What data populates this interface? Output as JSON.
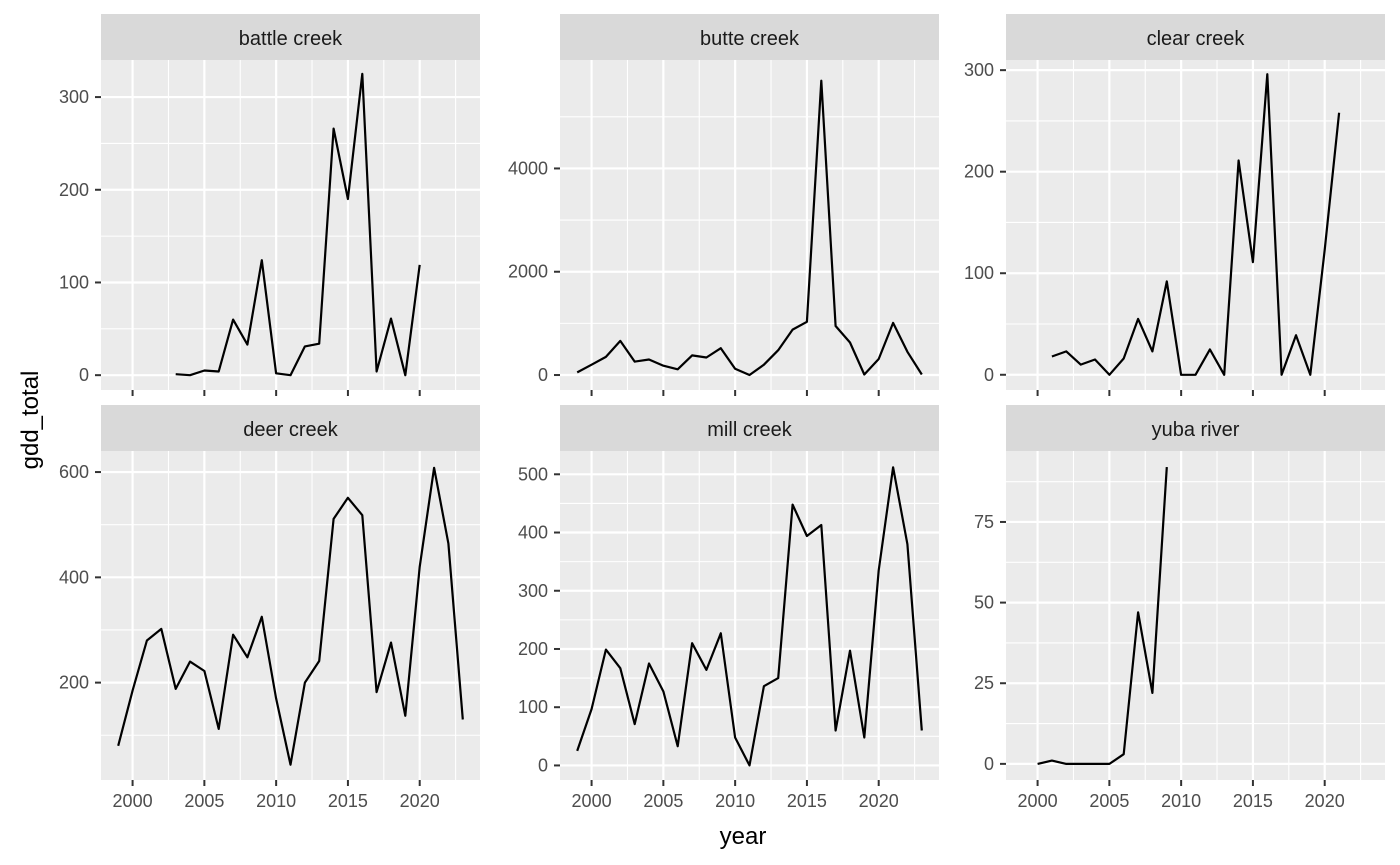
{
  "chart_data": {
    "type": "line",
    "layout": "facet-wrap",
    "xlabel": "year",
    "ylabel": "gdd_total",
    "x_ticks": [
      2000,
      2005,
      2010,
      2015,
      2020
    ],
    "grid": true,
    "panels": [
      {
        "title": "battle creek",
        "xlim": [
          1997.8,
          2024.2
        ],
        "ylim": [
          -16,
          340
        ],
        "yticks": [
          0,
          100,
          200,
          300
        ],
        "x": [
          2003,
          2004,
          2005,
          2006,
          2007,
          2008,
          2009,
          2010,
          2011,
          2012,
          2013,
          2014,
          2015,
          2016,
          2017,
          2018,
          2019,
          2020
        ],
        "y": [
          1,
          0,
          5,
          4,
          60,
          33,
          124,
          2,
          0,
          31,
          34,
          266,
          190,
          325,
          4,
          61,
          0,
          119
        ]
      },
      {
        "title": "butte creek",
        "xlim": [
          1997.8,
          2024.2
        ],
        "ylim": [
          -290,
          6100
        ],
        "yticks": [
          0,
          2000,
          4000
        ],
        "x": [
          1999,
          2000,
          2001,
          2002,
          2003,
          2004,
          2005,
          2006,
          2007,
          2008,
          2009,
          2010,
          2011,
          2012,
          2013,
          2014,
          2015,
          2016,
          2017,
          2018,
          2019,
          2020,
          2021,
          2022,
          2023
        ],
        "y": [
          50,
          200,
          350,
          660,
          260,
          300,
          180,
          110,
          380,
          340,
          520,
          120,
          0,
          200,
          480,
          880,
          1030,
          5700,
          950,
          630,
          10,
          310,
          1010,
          450,
          10
        ]
      },
      {
        "title": "clear creek",
        "xlim": [
          1997.8,
          2024.2
        ],
        "ylim": [
          -15,
          310
        ],
        "yticks": [
          0,
          100,
          200,
          300
        ],
        "x": [
          2001,
          2002,
          2003,
          2004,
          2005,
          2006,
          2007,
          2008,
          2009,
          2010,
          2011,
          2012,
          2013,
          2014,
          2015,
          2016,
          2017,
          2018,
          2019,
          2020,
          2021
        ],
        "y": [
          18,
          23,
          10,
          15,
          0,
          16,
          55,
          23,
          92,
          0,
          0,
          25,
          0,
          211,
          111,
          296,
          0,
          39,
          0,
          123,
          258
        ]
      },
      {
        "title": "deer creek",
        "xlim": [
          1997.8,
          2024.2
        ],
        "ylim": [
          15,
          640
        ],
        "yticks": [
          200,
          400,
          600
        ],
        "x": [
          1999,
          2000,
          2001,
          2002,
          2003,
          2004,
          2005,
          2006,
          2007,
          2008,
          2009,
          2010,
          2011,
          2012,
          2013,
          2014,
          2015,
          2016,
          2017,
          2018,
          2019,
          2020,
          2021,
          2022,
          2023
        ],
        "y": [
          80,
          185,
          280,
          302,
          188,
          240,
          222,
          112,
          291,
          248,
          325,
          170,
          44,
          200,
          241,
          511,
          551,
          518,
          182,
          276,
          137,
          420,
          608,
          464,
          130
        ]
      },
      {
        "title": "mill creek",
        "xlim": [
          1997.8,
          2024.2
        ],
        "ylim": [
          -25,
          540
        ],
        "yticks": [
          0,
          100,
          200,
          300,
          400,
          500
        ],
        "x": [
          1999,
          2000,
          2001,
          2002,
          2003,
          2004,
          2005,
          2006,
          2007,
          2008,
          2009,
          2010,
          2011,
          2012,
          2013,
          2014,
          2015,
          2016,
          2017,
          2018,
          2019,
          2020,
          2021,
          2022,
          2023
        ],
        "y": [
          25,
          97,
          199,
          167,
          71,
          175,
          127,
          33,
          210,
          164,
          227,
          48,
          0,
          136,
          150,
          448,
          394,
          413,
          60,
          197,
          48,
          335,
          512,
          380,
          60
        ]
      },
      {
        "title": "yuba river",
        "xlim": [
          1997.8,
          2024.2
        ],
        "ylim": [
          -5,
          97
        ],
        "yticks": [
          0,
          25,
          50,
          75
        ],
        "x": [
          2000,
          2001,
          2002,
          2003,
          2004,
          2005,
          2006,
          2007,
          2008,
          2009
        ],
        "y": [
          0,
          1,
          0,
          0,
          0,
          0,
          3,
          47,
          22,
          92
        ]
      }
    ]
  }
}
